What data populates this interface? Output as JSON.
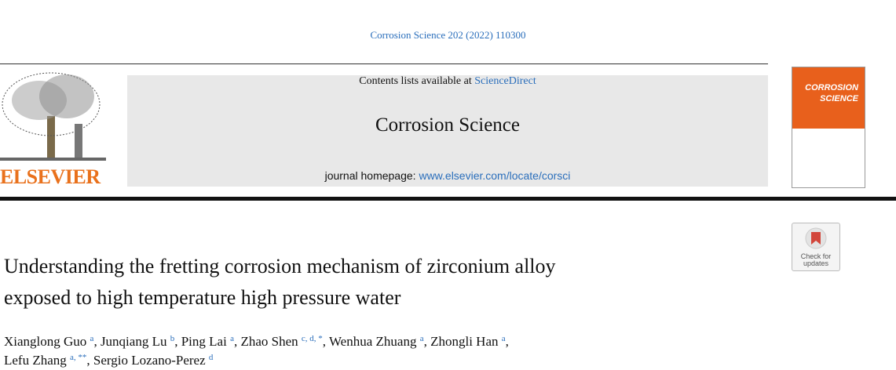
{
  "header": {
    "citation": "Corrosion Science 202 (2022) 110300",
    "contents_prefix": "Contents lists available at ",
    "contents_link": "ScienceDirect",
    "journal": "Corrosion Science",
    "homepage_prefix": "journal homepage: ",
    "homepage_link": "www.elsevier.com/locate/corsci",
    "publisher": "ELSEVIER",
    "cover": {
      "line1": "CORROSION",
      "line2": "SCIENCE"
    }
  },
  "badge": {
    "line1": "Check for",
    "line2": "updates"
  },
  "article": {
    "title_lines": [
      "Understanding the fretting corrosion mechanism of zirconium alloy",
      "exposed to high temperature high pressure water"
    ],
    "author_separator": ",",
    "authors": [
      {
        "name": "Xianglong Guo",
        "affiliations": "a"
      },
      {
        "name": "Junqiang Lu",
        "affiliations": "b"
      },
      {
        "name": "Ping Lai",
        "affiliations": "a"
      },
      {
        "name": "Zhao Shen",
        "affiliations": "c, d, *"
      },
      {
        "name": "Wenhua Zhuang",
        "affiliations": "a"
      },
      {
        "name": "Zhongli Han",
        "affiliations": "a"
      },
      {
        "name": "Lefu Zhang",
        "affiliations": "a, **"
      },
      {
        "name": "Sergio Lozano-Perez",
        "affiliations": "d"
      }
    ]
  }
}
